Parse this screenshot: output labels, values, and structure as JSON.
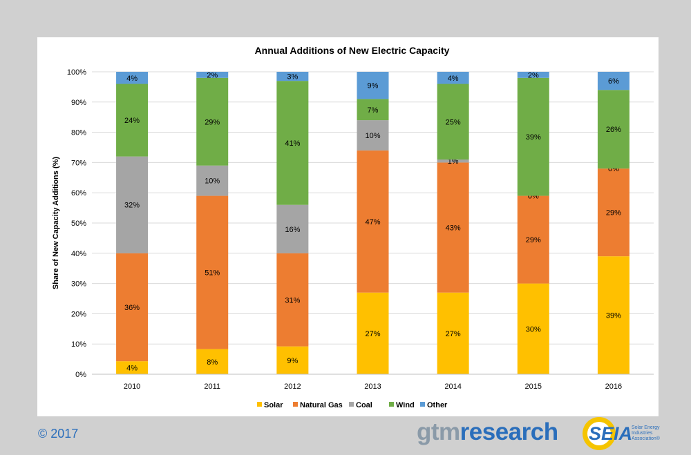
{
  "chart_data": {
    "type": "bar",
    "stacked": true,
    "title": "Annual Additions  of New Electric Capacity",
    "xlabel": "",
    "ylabel": "Share of New Capacity Additions (%)",
    "ylim": [
      0,
      100
    ],
    "ytick_labels": [
      "0%",
      "10%",
      "20%",
      "30%",
      "40%",
      "50%",
      "60%",
      "70%",
      "80%",
      "90%",
      "100%"
    ],
    "grid": true,
    "legend_position": "bottom",
    "categories": [
      "2010",
      "2011",
      "2012",
      "2013",
      "2014",
      "2015",
      "2016"
    ],
    "series": [
      {
        "name": "Solar",
        "color": "#ffc000",
        "values": [
          4.3,
          8.3,
          9.2,
          27,
          27,
          30,
          39
        ],
        "labels": [
          "4%",
          "8%",
          "9%",
          "27%",
          "27%",
          "30%",
          "39%"
        ]
      },
      {
        "name": "Natural Gas",
        "color": "#ed7d31",
        "values": [
          35.7,
          50.7,
          30.8,
          47,
          43,
          29,
          29
        ],
        "labels": [
          "36%",
          "51%",
          "31%",
          "47%",
          "43%",
          "29%",
          "29%"
        ]
      },
      {
        "name": "Coal",
        "color": "#a5a5a5",
        "values": [
          32,
          10,
          16,
          10,
          1,
          0,
          0
        ],
        "labels": [
          "32%",
          "10%",
          "16%",
          "10%",
          "1%",
          "0%",
          "0%"
        ]
      },
      {
        "name": "Wind",
        "color": "#70ad47",
        "values": [
          24,
          29,
          41,
          7,
          25,
          39,
          26
        ],
        "labels": [
          "24%",
          "29%",
          "41%",
          "7%",
          "25%",
          "39%",
          "26%"
        ]
      },
      {
        "name": "Other",
        "color": "#5b9bd5",
        "values": [
          4,
          2,
          3,
          9,
          4,
          2,
          6
        ],
        "labels": [
          "4%",
          "2%",
          "3%",
          "9%",
          "4%",
          "2%",
          "6%"
        ]
      }
    ]
  },
  "footer": {
    "copyright": "© 2017",
    "gtm_logo_part1": "gtm",
    "gtm_logo_part2": "research",
    "seia_logo": "SEIA",
    "seia_sub": [
      "Solar Energy",
      "Industries",
      "Association®"
    ]
  },
  "colors": {
    "background": "#d0d0d0",
    "panel": "#ffffff",
    "brand_blue": "#2a6ebb",
    "seia_gold": "#f5c400"
  }
}
